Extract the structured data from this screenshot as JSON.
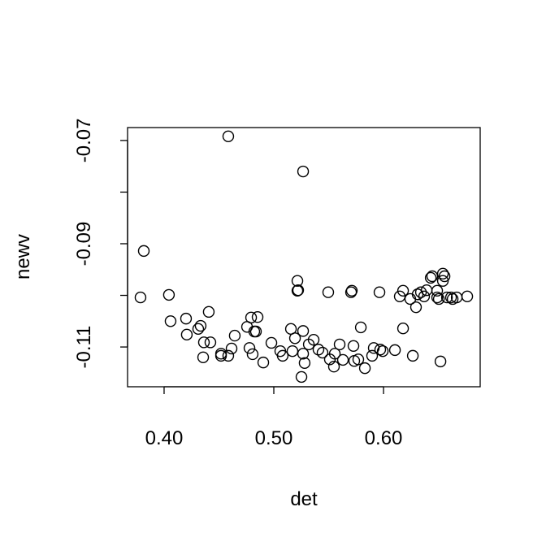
{
  "chart_data": {
    "type": "scatter",
    "title": "",
    "xlabel": "det",
    "ylabel": "newv",
    "xlim": [
      0.3667,
      0.6881
    ],
    "ylim": [
      -0.1177,
      -0.0675
    ],
    "xticks": [
      0.4,
      0.5,
      0.6
    ],
    "xtick_labels": [
      "0.40",
      "0.50",
      "0.60"
    ],
    "yticks": [
      -0.07,
      -0.08,
      -0.09,
      -0.1,
      -0.11
    ],
    "ytick_labels": [
      "-0.07",
      "",
      "-0.09",
      "",
      "-0.11"
    ],
    "grid": false,
    "marker": "open-circle",
    "color": "#000000",
    "x": [
      0.3785,
      0.3815,
      0.4044,
      0.4059,
      0.42,
      0.4207,
      0.4311,
      0.4333,
      0.4407,
      0.4363,
      0.4422,
      0.4356,
      0.4519,
      0.4519,
      0.4585,
      0.4585,
      0.4615,
      0.4644,
      0.4756,
      0.4778,
      0.4793,
      0.4807,
      0.4852,
      0.4837,
      0.4822,
      0.4904,
      0.4978,
      0.5059,
      0.5081,
      0.5156,
      0.517,
      0.5193,
      0.5215,
      0.5215,
      0.5222,
      0.5267,
      0.5267,
      0.5267,
      0.5252,
      0.5281,
      0.5319,
      0.5363,
      0.5407,
      0.5444,
      0.5496,
      0.5511,
      0.5548,
      0.5556,
      0.56,
      0.563,
      0.5704,
      0.5711,
      0.5726,
      0.5733,
      0.577,
      0.5793,
      0.583,
      0.5896,
      0.5911,
      0.5963,
      0.597,
      0.5993,
      0.6104,
      0.6148,
      0.6178,
      0.6178,
      0.6244,
      0.6267,
      0.6296,
      0.6311,
      0.6341,
      0.637,
      0.6393,
      0.643,
      0.6444,
      0.6489,
      0.6489,
      0.6504,
      0.6519,
      0.6541,
      0.6541,
      0.6556,
      0.6578,
      0.6615,
      0.663,
      0.6667,
      0.6763
    ],
    "y": [
      -0.1004,
      -0.0914,
      -0.0999,
      -0.105,
      -0.1045,
      -0.1076,
      -0.1065,
      -0.1059,
      -0.1032,
      -0.1091,
      -0.1091,
      -0.112,
      -0.1113,
      -0.1117,
      -0.1117,
      -0.0692,
      -0.1103,
      -0.1078,
      -0.1061,
      -0.1102,
      -0.1043,
      -0.1114,
      -0.1042,
      -0.107,
      -0.107,
      -0.113,
      -0.1092,
      -0.1108,
      -0.1117,
      -0.1065,
      -0.1108,
      -0.1083,
      -0.0972,
      -0.0991,
      -0.099,
      -0.076,
      -0.1069,
      -0.1113,
      -0.1158,
      -0.1131,
      -0.1095,
      -0.1086,
      -0.1105,
      -0.1111,
      -0.0994,
      -0.1124,
      -0.1138,
      -0.1113,
      -0.1095,
      -0.1125,
      -0.0994,
      -0.0991,
      -0.1098,
      -0.1127,
      -0.1124,
      -0.1062,
      -0.1141,
      -0.1117,
      -0.1102,
      -0.0994,
      -0.1105,
      -0.1108,
      -0.1106,
      -0.1002,
      -0.0991,
      -0.1064,
      -0.1007,
      -0.1117,
      -0.1023,
      -0.0998,
      -0.0994,
      -0.1002,
      -0.099,
      -0.0966,
      -0.0963,
      -0.0991,
      -0.1004,
      -0.1007,
      -0.1128,
      -0.0958,
      -0.0972,
      -0.0963,
      -0.1004,
      -0.1004,
      -0.1007,
      -0.1004,
      -0.1002
    ]
  }
}
